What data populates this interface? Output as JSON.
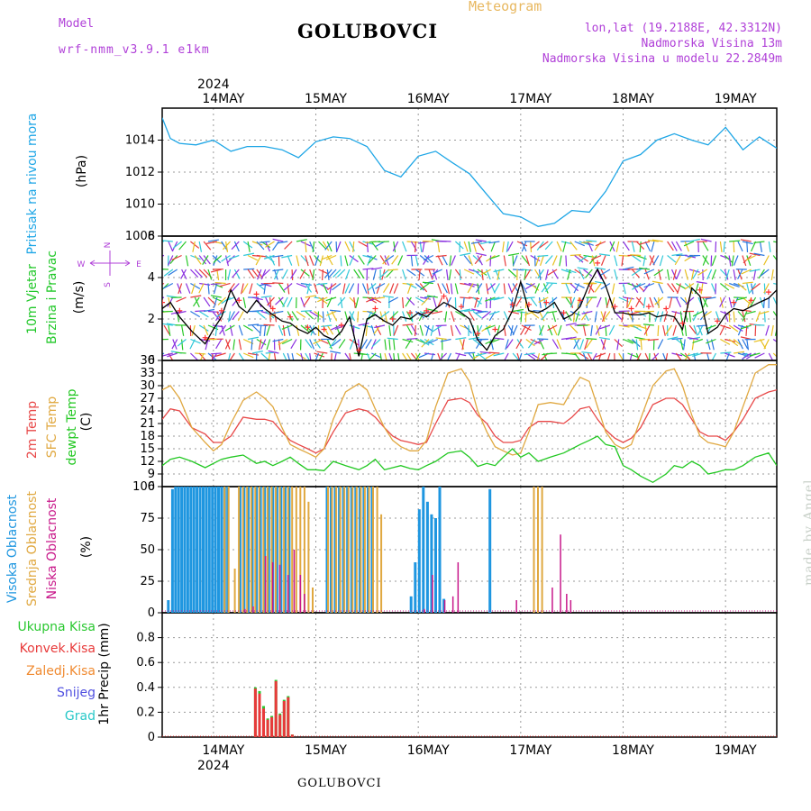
{
  "header": {
    "model_label": "Model",
    "model_name": "wrf-nmm_v3.9.1 e1km",
    "station": "GOLUBOVCI",
    "meteogram_label": "Meteogram",
    "lonlat": "lon,lat (19.2188E, 42.3312N)",
    "altitude": "Nadmorska Visina 13m",
    "model_altitude": "Nadmorska Visina u modelu 22.2849m"
  },
  "footer": {
    "station": "GOLUBOVCI",
    "watermark": "made by Angel"
  },
  "dates": [
    "14MAY",
    "15MAY",
    "16MAY",
    "17MAY",
    "18MAY",
    "19MAY"
  ],
  "year": "2024",
  "compass": {
    "n": "N",
    "s": "S",
    "w": "W",
    "e": "E"
  },
  "colors": {
    "pressure": "#1ea6e6",
    "wind_label": "#22c82a",
    "t2m": "#e84848",
    "sfc": "#e0a840",
    "dew": "#22c822",
    "high_cloud": "#1e96e0",
    "mid_cloud": "#e0a840",
    "low_cloud": "#c8188a",
    "total_precip": "#2ac830",
    "conv_precip": "#e83a3a",
    "frozen_precip": "#f08a30",
    "snow": "#5050e0",
    "graupel": "#28c8c8",
    "axis": "#000000"
  },
  "panels": {
    "pressure": {
      "label": "Pritisak na nivou mora",
      "unit": "(hPa)"
    },
    "wind": {
      "label1": "10m Vjetar",
      "label2": "Brzina i Pravac",
      "unit": "(m/s)"
    },
    "temp": {
      "label1": "2m Temp",
      "label2": "SFC Temp",
      "label3": "dewpt Temp",
      "unit": "(C)"
    },
    "cloud": {
      "label1": "Visoka Oblacnost",
      "label2": "Srednja Oblacnost",
      "label3": "Niska Oblacnost",
      "unit": "(%)"
    },
    "precip": {
      "label1": "Ukupna Kisa",
      "label2": "Konvek.Kisa",
      "label3": "Zaledj.Kisa",
      "label4": "Snijeg",
      "label5": "Grad",
      "unit": "1hr Precip (mm)"
    }
  },
  "chart_data": [
    {
      "type": "line",
      "title": "Pritisak na nivou mora",
      "ylabel": "(hPa)",
      "ylim": [
        1008,
        1016
      ],
      "yticks": [
        1008,
        1010,
        1012,
        1014
      ],
      "x_unit": "days since 14MAY 00UTC",
      "xlim": [
        -0.5,
        5.5
      ],
      "series": [
        {
          "name": "Pritisak na nivou mora",
          "color": "#1ea6e6",
          "x": [
            -0.5,
            -0.42,
            -0.33,
            -0.17,
            0,
            0.17,
            0.33,
            0.5,
            0.67,
            0.83,
            1,
            1.17,
            1.33,
            1.5,
            1.67,
            1.83,
            2,
            2.17,
            2.33,
            2.5,
            2.67,
            2.83,
            3,
            3.17,
            3.33,
            3.5,
            3.67,
            3.83,
            4,
            4.17,
            4.33,
            4.5,
            4.67,
            4.83,
            5,
            5.17,
            5.33,
            5.5
          ],
          "y": [
            1015.4,
            1014.1,
            1013.8,
            1013.7,
            1014,
            1013.3,
            1013.6,
            1013.6,
            1013.4,
            1012.9,
            1013.9,
            1014.2,
            1014.1,
            1013.6,
            1012.1,
            1011.7,
            1013,
            1013.3,
            1012.6,
            1011.9,
            1010.6,
            1009.4,
            1009.2,
            1008.6,
            1008.8,
            1009.6,
            1009.5,
            1010.8,
            1012.7,
            1013.1,
            1014,
            1014.4,
            1014,
            1013.7,
            1014.8,
            1013.4,
            1014.2,
            1013.5
          ]
        }
      ]
    },
    {
      "type": "line",
      "title": "10m Vjetar Brzina i Pravac",
      "ylabel": "(m/s)",
      "ylim": [
        0,
        6
      ],
      "yticks": [
        0,
        2,
        4,
        6
      ],
      "xlim": [
        -0.5,
        5.5
      ],
      "series": [
        {
          "name": "10m Vjetar",
          "color": "#000000",
          "x": [
            -0.5,
            -0.42,
            -0.33,
            -0.21,
            -0.08,
            0,
            0.08,
            0.17,
            0.25,
            0.33,
            0.42,
            0.5,
            0.58,
            0.67,
            0.75,
            0.83,
            0.92,
            1,
            1.08,
            1.17,
            1.25,
            1.33,
            1.42,
            1.5,
            1.58,
            1.67,
            1.75,
            1.83,
            1.92,
            2,
            2.08,
            2.17,
            2.25,
            2.33,
            2.42,
            2.5,
            2.58,
            2.67,
            2.75,
            2.83,
            2.92,
            3,
            3.08,
            3.17,
            3.25,
            3.33,
            3.42,
            3.5,
            3.58,
            3.67,
            3.75,
            3.83,
            3.92,
            4,
            4.08,
            4.17,
            4.25,
            4.33,
            4.42,
            4.5,
            4.58,
            4.67,
            4.75,
            4.83,
            4.92,
            5,
            5.08,
            5.17,
            5.25,
            5.33,
            5.42,
            5.5
          ],
          "y": [
            2.5,
            2.8,
            2.1,
            1.4,
            0.8,
            1.5,
            2.1,
            3.4,
            2.6,
            2.3,
            2.9,
            2.5,
            2.2,
            1.9,
            1.8,
            1.5,
            1.3,
            1.6,
            1.2,
            1.0,
            1.4,
            2.1,
            0.2,
            2.0,
            2.2,
            1.9,
            1.7,
            2.1,
            2.0,
            2.3,
            2.1,
            2.5,
            2.8,
            2.6,
            2.3,
            2.0,
            1.0,
            0.5,
            1.2,
            1.5,
            2.4,
            3.8,
            2.4,
            2.3,
            2.5,
            2.8,
            2.0,
            2.2,
            2.6,
            3.7,
            4.4,
            3.6,
            2.3,
            2.3,
            2.2,
            2.2,
            2.3,
            2.1,
            2.2,
            2.1,
            1.5,
            3.5,
            3.1,
            1.3,
            1.6,
            2.2,
            2.5,
            2.4,
            2.6,
            2.8,
            3.0,
            3.4
          ]
        }
      ]
    },
    {
      "type": "line",
      "title": "2m Temp / SFC Temp / dewpt Temp",
      "ylabel": "(C)",
      "ylim": [
        6,
        36
      ],
      "yticks": [
        6,
        9,
        12,
        15,
        18,
        21,
        24,
        27,
        30,
        33,
        36
      ],
      "xlim": [
        -0.5,
        5.5
      ],
      "x": [
        -0.5,
        -0.42,
        -0.33,
        -0.21,
        -0.08,
        0,
        0.08,
        0.17,
        0.29,
        0.42,
        0.5,
        0.58,
        0.67,
        0.75,
        0.83,
        0.92,
        1,
        1.08,
        1.17,
        1.29,
        1.42,
        1.5,
        1.58,
        1.67,
        1.75,
        1.83,
        1.92,
        2,
        2.08,
        2.17,
        2.29,
        2.42,
        2.5,
        2.58,
        2.67,
        2.75,
        2.83,
        2.92,
        3,
        3.08,
        3.17,
        3.29,
        3.42,
        3.5,
        3.58,
        3.67,
        3.75,
        3.83,
        3.92,
        4,
        4.08,
        4.17,
        4.29,
        4.42,
        4.5,
        4.58,
        4.67,
        4.75,
        4.83,
        4.92,
        5,
        5.08,
        5.17,
        5.29,
        5.42,
        5.5
      ],
      "series": [
        {
          "name": "2m Temp",
          "color": "#e84848",
          "y": [
            22,
            24.5,
            24,
            20,
            18.5,
            16.5,
            16.5,
            18,
            22.5,
            22,
            22,
            21.5,
            19,
            17,
            16,
            15,
            14,
            15,
            19,
            23.5,
            24.5,
            24,
            22.5,
            20,
            18,
            17,
            16.5,
            16,
            16.5,
            21,
            26.5,
            27,
            26,
            23,
            21,
            18,
            16.5,
            16.5,
            17,
            20,
            21.5,
            21.5,
            21,
            22.5,
            24.5,
            25,
            22,
            19.5,
            17.5,
            16.5,
            17.5,
            20,
            25.5,
            27,
            27,
            25.5,
            22,
            19,
            18,
            18,
            17,
            19,
            22,
            27,
            28.5,
            29
          ]
        },
        {
          "name": "SFC Temp",
          "color": "#e0a840",
          "y": [
            29,
            30,
            27,
            20,
            16.5,
            14.5,
            16,
            21,
            26.5,
            28.5,
            27,
            25,
            20,
            16,
            15,
            14,
            13,
            15,
            22,
            28.5,
            30.5,
            29,
            24.5,
            20,
            17,
            15.5,
            14.5,
            14.5,
            17,
            25,
            33,
            34,
            31,
            24,
            19,
            15.5,
            14.5,
            13.5,
            14,
            19,
            25.5,
            26,
            25.5,
            29,
            32,
            31,
            25,
            19,
            16,
            15,
            16,
            22,
            30,
            33.5,
            34,
            30,
            23,
            18,
            16.5,
            16,
            15.5,
            19,
            25,
            33,
            35,
            35
          ]
        },
        {
          "name": "dewpt Temp",
          "color": "#22c822",
          "y": [
            11,
            12.5,
            13,
            12,
            10.5,
            11.5,
            12.5,
            13,
            13.5,
            11.5,
            12,
            11,
            12,
            13,
            11.5,
            10,
            10,
            9.8,
            12,
            11,
            10,
            11,
            12.5,
            10,
            10.5,
            11,
            10.3,
            10,
            11,
            12,
            14,
            14.5,
            13,
            10.8,
            11.5,
            11,
            13,
            15,
            13,
            14,
            12,
            13,
            14,
            15,
            16,
            17,
            18,
            16,
            15.5,
            11,
            10,
            8.5,
            7,
            9,
            11,
            10.5,
            12,
            11,
            9,
            9.5,
            10,
            10,
            11,
            13,
            14,
            11
          ]
        }
      ]
    },
    {
      "type": "bar",
      "title": "Visoka / Srednja / Niska Oblacnost",
      "ylabel": "(%)",
      "ylim": [
        0,
        100
      ],
      "yticks": [
        0,
        25,
        50,
        75,
        100
      ],
      "xlim": [
        -0.5,
        5.5
      ],
      "series": [
        {
          "name": "Visoka Oblacnost",
          "color": "#1e96e0",
          "x": [
            -0.44,
            -0.4,
            -0.37,
            -0.34,
            -0.31,
            -0.28,
            -0.25,
            -0.22,
            -0.19,
            -0.16,
            -0.13,
            -0.1,
            -0.07,
            -0.04,
            -0.01,
            0.02,
            0.05,
            0.08,
            0.11,
            0.14,
            0.26,
            0.3,
            0.34,
            0.38,
            0.42,
            0.46,
            0.5,
            0.54,
            0.58,
            0.62,
            0.66,
            0.7,
            0.74,
            1.11,
            1.15,
            1.19,
            1.23,
            1.27,
            1.31,
            1.35,
            1.39,
            1.43,
            1.47,
            1.51,
            1.55,
            1.93,
            1.97,
            2.01,
            2.05,
            2.09,
            2.13,
            2.17,
            2.21,
            2.25,
            2.7
          ],
          "y": [
            10,
            98,
            100,
            100,
            100,
            100,
            100,
            100,
            100,
            100,
            100,
            100,
            100,
            100,
            100,
            100,
            100,
            100,
            100,
            100,
            100,
            100,
            100,
            100,
            100,
            100,
            100,
            100,
            100,
            100,
            100,
            100,
            100,
            100,
            100,
            100,
            100,
            100,
            100,
            100,
            100,
            100,
            100,
            100,
            100,
            13,
            40,
            82,
            100,
            88,
            78,
            75,
            100,
            11,
            98
          ]
        },
        {
          "name": "Srednja Oblacnost",
          "color": "#e0a840",
          "x": [
            0.1,
            0.14,
            0.2,
            0.24,
            0.28,
            0.32,
            0.36,
            0.4,
            0.44,
            0.48,
            0.52,
            0.56,
            0.6,
            0.64,
            0.68,
            0.72,
            0.76,
            0.8,
            0.84,
            0.88,
            0.92,
            0.96,
            1.11,
            1.15,
            1.19,
            1.23,
            1.27,
            1.31,
            1.35,
            1.39,
            1.43,
            1.47,
            1.51,
            1.55,
            1.59,
            1.63,
            3.12,
            3.16,
            3.2
          ],
          "y": [
            100,
            100,
            35,
            100,
            100,
            100,
            100,
            100,
            100,
            100,
            100,
            100,
            100,
            100,
            100,
            100,
            100,
            100,
            100,
            100,
            88,
            20,
            100,
            100,
            100,
            100,
            100,
            100,
            100,
            100,
            100,
            100,
            100,
            100,
            100,
            78,
            100,
            100,
            100
          ]
        },
        {
          "name": "Niska Oblacnost",
          "color": "#c8188a",
          "x": [
            0.3,
            0.38,
            0.5,
            0.57,
            0.64,
            0.72,
            0.78,
            0.84,
            0.88,
            2.05,
            2.13,
            2.25,
            2.33,
            2.38,
            2.95,
            3.3,
            3.38,
            3.44,
            3.48
          ],
          "y": [
            3,
            5,
            45,
            40,
            38,
            30,
            50,
            30,
            15,
            3,
            30,
            10,
            13,
            40,
            10,
            20,
            62,
            15,
            10
          ]
        }
      ]
    },
    {
      "type": "bar",
      "title": "1hr Precip",
      "ylabel": "1hr Precip (mm)",
      "ylim": [
        0,
        1
      ],
      "yticks": [
        0,
        0.2,
        0.4,
        0.6,
        0.8
      ],
      "xlim": [
        -0.5,
        5.5
      ],
      "series": [
        {
          "name": "Ukupna Kisa",
          "color": "#2ac830",
          "x": [
            0.41,
            0.45,
            0.49,
            0.53,
            0.57,
            0.61,
            0.65,
            0.69,
            0.73,
            0.77
          ],
          "y": [
            0.4,
            0.37,
            0.25,
            0.15,
            0.17,
            0.46,
            0.19,
            0.3,
            0.33,
            0.02
          ]
        },
        {
          "name": "Konvek.Kisa",
          "color": "#e83a3a",
          "x": [
            0.41,
            0.45,
            0.49,
            0.53,
            0.57,
            0.61,
            0.65,
            0.69,
            0.73,
            0.77
          ],
          "y": [
            0.39,
            0.35,
            0.23,
            0.14,
            0.16,
            0.45,
            0.18,
            0.29,
            0.32,
            0.02
          ]
        }
      ]
    }
  ]
}
